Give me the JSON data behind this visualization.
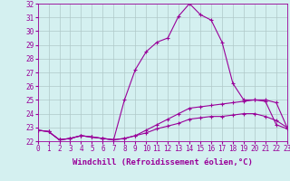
{
  "title": "",
  "xlabel": "Windchill (Refroidissement éolien,°C)",
  "ylabel": "",
  "x": [
    0,
    1,
    2,
    3,
    4,
    5,
    6,
    7,
    8,
    9,
    10,
    11,
    12,
    13,
    14,
    15,
    16,
    17,
    18,
    19,
    20,
    21,
    22,
    23
  ],
  "line1": [
    22.8,
    22.7,
    22.1,
    22.2,
    22.4,
    22.3,
    22.2,
    22.1,
    25.0,
    27.2,
    28.5,
    29.2,
    29.5,
    31.1,
    32.0,
    31.2,
    30.8,
    29.2,
    26.2,
    25.0,
    25.0,
    24.9,
    23.2,
    22.9
  ],
  "line2": [
    22.8,
    22.7,
    22.1,
    22.2,
    22.4,
    22.3,
    22.2,
    22.1,
    22.2,
    22.4,
    22.8,
    23.2,
    23.6,
    24.0,
    24.4,
    24.5,
    24.6,
    24.7,
    24.8,
    24.9,
    25.0,
    25.0,
    24.8,
    23.0
  ],
  "line3": [
    22.8,
    22.7,
    22.1,
    22.2,
    22.4,
    22.3,
    22.2,
    22.1,
    22.2,
    22.4,
    22.6,
    22.9,
    23.1,
    23.3,
    23.6,
    23.7,
    23.8,
    23.8,
    23.9,
    24.0,
    24.0,
    23.8,
    23.5,
    23.0
  ],
  "ylim_min": 22,
  "ylim_max": 32,
  "xlim_min": 0,
  "xlim_max": 23,
  "bg_color": "#d4f0f0",
  "line_color": "#990099",
  "grid_color": "#b0c8c8",
  "marker": "+",
  "linewidth": 0.8,
  "markersize": 3,
  "tick_fontsize": 5.5,
  "label_fontsize": 6.5
}
